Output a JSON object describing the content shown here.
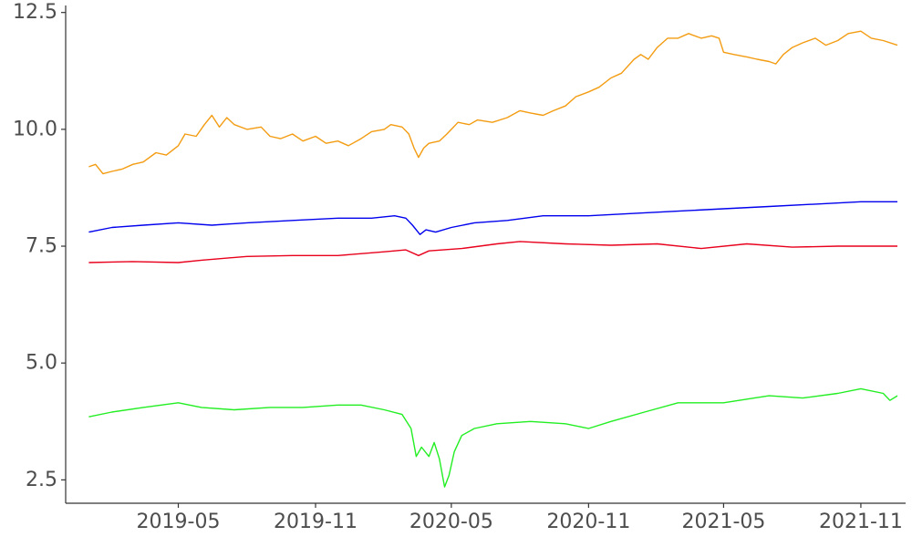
{
  "chart_data": {
    "type": "line",
    "title": "",
    "xlabel": "",
    "ylabel": "",
    "x_axis_type": "date",
    "xlim": [
      "2018-12-01",
      "2021-12-31"
    ],
    "ylim": [
      2.0,
      12.65
    ],
    "grid": false,
    "legend": "none",
    "xticks": [
      {
        "date": "2019-05-01",
        "label": "2019-05"
      },
      {
        "date": "2019-11-01",
        "label": "2019-11"
      },
      {
        "date": "2020-05-01",
        "label": "2020-05"
      },
      {
        "date": "2020-11-01",
        "label": "2020-11"
      },
      {
        "date": "2021-05-01",
        "label": "2021-05"
      },
      {
        "date": "2021-11-01",
        "label": "2021-11"
      }
    ],
    "yticks": [
      {
        "value": 2.5,
        "label": "2.5"
      },
      {
        "value": 5.0,
        "label": "5.0"
      },
      {
        "value": 7.5,
        "label": "7.5"
      },
      {
        "value": 10.0,
        "label": "10.0"
      },
      {
        "value": 12.5,
        "label": "12.5"
      }
    ],
    "series": [
      {
        "color": "#f39c12",
        "points": [
          [
            "2019-01-01",
            9.2
          ],
          [
            "2019-01-10",
            9.25
          ],
          [
            "2019-01-20",
            9.05
          ],
          [
            "2019-02-01",
            9.1
          ],
          [
            "2019-02-15",
            9.15
          ],
          [
            "2019-03-01",
            9.25
          ],
          [
            "2019-03-15",
            9.3
          ],
          [
            "2019-04-01",
            9.5
          ],
          [
            "2019-04-15",
            9.45
          ],
          [
            "2019-05-01",
            9.65
          ],
          [
            "2019-05-10",
            9.9
          ],
          [
            "2019-05-25",
            9.85
          ],
          [
            "2019-06-05",
            10.1
          ],
          [
            "2019-06-15",
            10.3
          ],
          [
            "2019-06-25",
            10.05
          ],
          [
            "2019-07-05",
            10.25
          ],
          [
            "2019-07-15",
            10.1
          ],
          [
            "2019-08-01",
            10.0
          ],
          [
            "2019-08-20",
            10.05
          ],
          [
            "2019-09-01",
            9.85
          ],
          [
            "2019-09-15",
            9.8
          ],
          [
            "2019-10-01",
            9.9
          ],
          [
            "2019-10-15",
            9.75
          ],
          [
            "2019-11-01",
            9.85
          ],
          [
            "2019-11-15",
            9.7
          ],
          [
            "2019-12-01",
            9.75
          ],
          [
            "2019-12-15",
            9.65
          ],
          [
            "2020-01-01",
            9.8
          ],
          [
            "2020-01-15",
            9.95
          ],
          [
            "2020-02-01",
            10.0
          ],
          [
            "2020-02-10",
            10.1
          ],
          [
            "2020-02-25",
            10.05
          ],
          [
            "2020-03-05",
            9.9
          ],
          [
            "2020-03-12",
            9.6
          ],
          [
            "2020-03-18",
            9.4
          ],
          [
            "2020-03-25",
            9.6
          ],
          [
            "2020-04-01",
            9.7
          ],
          [
            "2020-04-15",
            9.75
          ],
          [
            "2020-04-25",
            9.9
          ],
          [
            "2020-05-01",
            10.0
          ],
          [
            "2020-05-10",
            10.15
          ],
          [
            "2020-05-25",
            10.1
          ],
          [
            "2020-06-05",
            10.2
          ],
          [
            "2020-06-25",
            10.15
          ],
          [
            "2020-07-15",
            10.25
          ],
          [
            "2020-08-01",
            10.4
          ],
          [
            "2020-08-15",
            10.35
          ],
          [
            "2020-09-01",
            10.3
          ],
          [
            "2020-09-15",
            10.4
          ],
          [
            "2020-10-01",
            10.5
          ],
          [
            "2020-10-15",
            10.7
          ],
          [
            "2020-11-01",
            10.8
          ],
          [
            "2020-11-15",
            10.9
          ],
          [
            "2020-12-01",
            11.1
          ],
          [
            "2020-12-15",
            11.2
          ],
          [
            "2021-01-01",
            11.5
          ],
          [
            "2021-01-10",
            11.6
          ],
          [
            "2021-01-20",
            11.5
          ],
          [
            "2021-02-01",
            11.75
          ],
          [
            "2021-02-15",
            11.95
          ],
          [
            "2021-03-01",
            11.95
          ],
          [
            "2021-03-15",
            12.05
          ],
          [
            "2021-04-01",
            11.95
          ],
          [
            "2021-04-15",
            12.0
          ],
          [
            "2021-04-25",
            11.95
          ],
          [
            "2021-05-01",
            11.65
          ],
          [
            "2021-05-15",
            11.6
          ],
          [
            "2021-06-01",
            11.55
          ],
          [
            "2021-06-15",
            11.5
          ],
          [
            "2021-07-01",
            11.45
          ],
          [
            "2021-07-10",
            11.4
          ],
          [
            "2021-07-20",
            11.6
          ],
          [
            "2021-08-01",
            11.75
          ],
          [
            "2021-08-15",
            11.85
          ],
          [
            "2021-09-01",
            11.95
          ],
          [
            "2021-09-15",
            11.8
          ],
          [
            "2021-10-01",
            11.9
          ],
          [
            "2021-10-15",
            12.05
          ],
          [
            "2021-11-01",
            12.1
          ],
          [
            "2021-11-15",
            11.95
          ],
          [
            "2021-12-01",
            11.9
          ],
          [
            "2021-12-20",
            11.8
          ]
        ]
      },
      {
        "color": "#0000ee",
        "points": [
          [
            "2019-01-01",
            7.8
          ],
          [
            "2019-02-01",
            7.9
          ],
          [
            "2019-03-15",
            7.95
          ],
          [
            "2019-05-01",
            8.0
          ],
          [
            "2019-06-15",
            7.95
          ],
          [
            "2019-08-01",
            8.0
          ],
          [
            "2019-10-01",
            8.05
          ],
          [
            "2019-12-01",
            8.1
          ],
          [
            "2020-01-15",
            8.1
          ],
          [
            "2020-02-15",
            8.15
          ],
          [
            "2020-03-01",
            8.1
          ],
          [
            "2020-03-10",
            7.95
          ],
          [
            "2020-03-20",
            7.75
          ],
          [
            "2020-03-28",
            7.85
          ],
          [
            "2020-04-10",
            7.8
          ],
          [
            "2020-05-01",
            7.9
          ],
          [
            "2020-06-01",
            8.0
          ],
          [
            "2020-07-15",
            8.05
          ],
          [
            "2020-09-01",
            8.15
          ],
          [
            "2020-11-01",
            8.15
          ],
          [
            "2021-01-01",
            8.2
          ],
          [
            "2021-03-01",
            8.25
          ],
          [
            "2021-05-01",
            8.3
          ],
          [
            "2021-07-01",
            8.35
          ],
          [
            "2021-09-01",
            8.4
          ],
          [
            "2021-11-01",
            8.45
          ],
          [
            "2021-12-20",
            8.45
          ]
        ]
      },
      {
        "color": "#e8001c",
        "points": [
          [
            "2019-01-01",
            7.15
          ],
          [
            "2019-03-01",
            7.17
          ],
          [
            "2019-05-01",
            7.15
          ],
          [
            "2019-06-01",
            7.2
          ],
          [
            "2019-08-01",
            7.28
          ],
          [
            "2019-10-01",
            7.3
          ],
          [
            "2019-12-01",
            7.3
          ],
          [
            "2020-02-01",
            7.38
          ],
          [
            "2020-03-01",
            7.42
          ],
          [
            "2020-03-18",
            7.3
          ],
          [
            "2020-04-01",
            7.4
          ],
          [
            "2020-05-15",
            7.45
          ],
          [
            "2020-07-01",
            7.55
          ],
          [
            "2020-08-01",
            7.6
          ],
          [
            "2020-10-01",
            7.55
          ],
          [
            "2020-12-01",
            7.52
          ],
          [
            "2021-02-01",
            7.55
          ],
          [
            "2021-04-01",
            7.45
          ],
          [
            "2021-06-01",
            7.55
          ],
          [
            "2021-08-01",
            7.48
          ],
          [
            "2021-10-01",
            7.5
          ],
          [
            "2021-12-20",
            7.5
          ]
        ]
      },
      {
        "color": "#22ee22",
        "points": [
          [
            "2019-01-01",
            3.85
          ],
          [
            "2019-02-01",
            3.95
          ],
          [
            "2019-03-15",
            4.05
          ],
          [
            "2019-05-01",
            4.15
          ],
          [
            "2019-06-01",
            4.05
          ],
          [
            "2019-07-15",
            4.0
          ],
          [
            "2019-09-01",
            4.05
          ],
          [
            "2019-10-15",
            4.05
          ],
          [
            "2019-12-01",
            4.1
          ],
          [
            "2020-01-01",
            4.1
          ],
          [
            "2020-02-01",
            4.0
          ],
          [
            "2020-02-25",
            3.9
          ],
          [
            "2020-03-08",
            3.6
          ],
          [
            "2020-03-15",
            3.0
          ],
          [
            "2020-03-22",
            3.2
          ],
          [
            "2020-04-01",
            3.0
          ],
          [
            "2020-04-08",
            3.3
          ],
          [
            "2020-04-15",
            2.95
          ],
          [
            "2020-04-22",
            2.35
          ],
          [
            "2020-04-28",
            2.6
          ],
          [
            "2020-05-05",
            3.1
          ],
          [
            "2020-05-15",
            3.45
          ],
          [
            "2020-06-01",
            3.6
          ],
          [
            "2020-07-01",
            3.7
          ],
          [
            "2020-08-15",
            3.75
          ],
          [
            "2020-10-01",
            3.7
          ],
          [
            "2020-11-01",
            3.6
          ],
          [
            "2020-12-01",
            3.75
          ],
          [
            "2021-01-15",
            3.95
          ],
          [
            "2021-03-01",
            4.15
          ],
          [
            "2021-05-01",
            4.15
          ],
          [
            "2021-07-01",
            4.3
          ],
          [
            "2021-08-15",
            4.25
          ],
          [
            "2021-10-01",
            4.35
          ],
          [
            "2021-11-01",
            4.45
          ],
          [
            "2021-12-01",
            4.35
          ],
          [
            "2021-12-10",
            4.2
          ],
          [
            "2021-12-20",
            4.3
          ]
        ]
      }
    ]
  }
}
